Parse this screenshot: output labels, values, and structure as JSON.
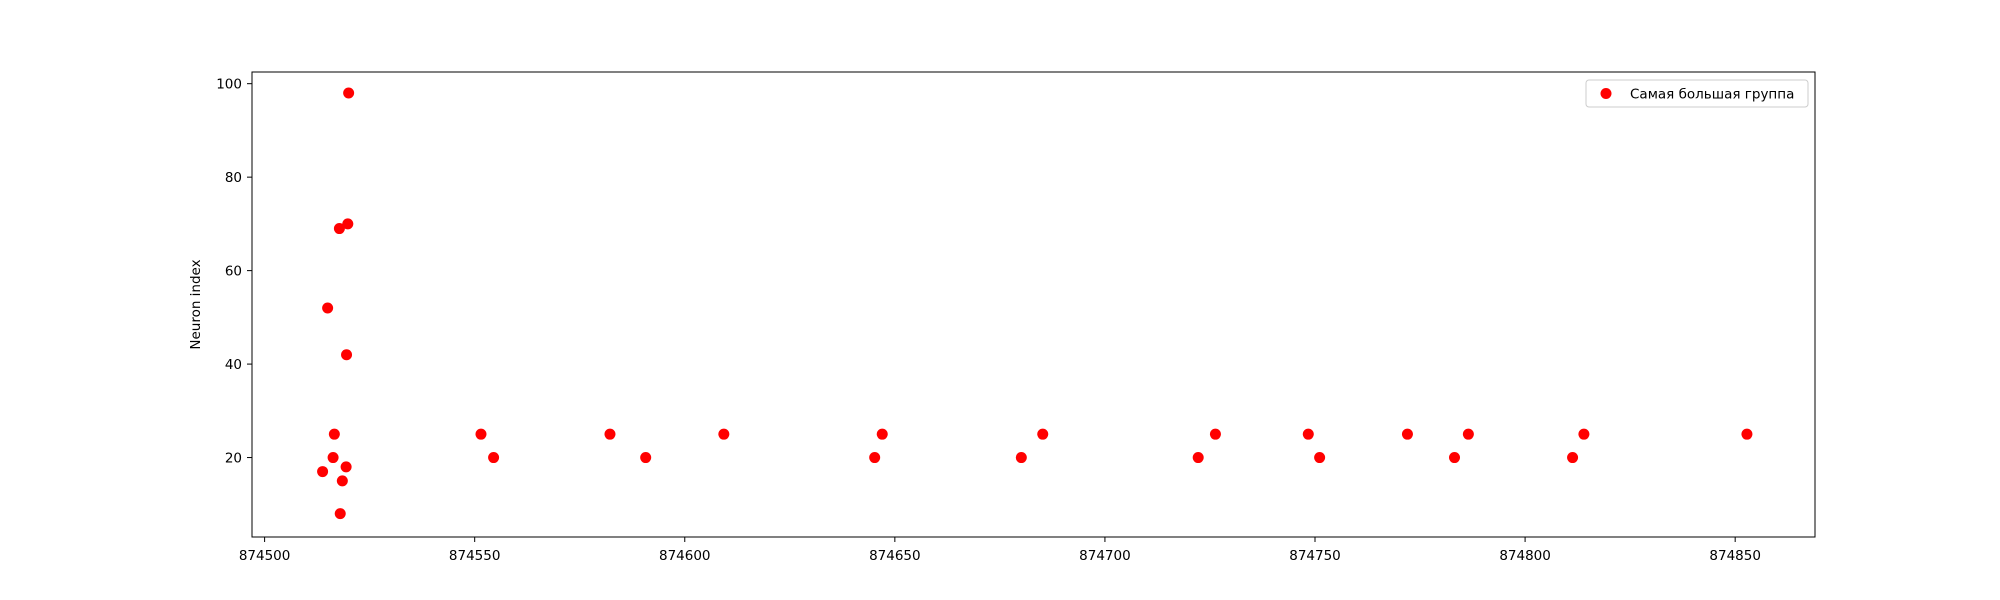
{
  "chart_data": {
    "type": "scatter",
    "title": "",
    "xlabel": "",
    "ylabel": "Neuron index",
    "xlim": [
      874497,
      874869
    ],
    "ylim": [
      3,
      102.5
    ],
    "xticks": [
      874500,
      874550,
      874600,
      874650,
      874700,
      874750,
      874800,
      874850
    ],
    "yticks": [
      20,
      40,
      60,
      80,
      100
    ],
    "grid": false,
    "legend_position": "top-right",
    "series": [
      {
        "name": "Самая большая группа",
        "color": "#ff0000",
        "points": [
          [
            874513.8,
            17
          ],
          [
            874515.0,
            52
          ],
          [
            874516.3,
            20
          ],
          [
            874516.6,
            25
          ],
          [
            874517.8,
            69
          ],
          [
            874518.0,
            8
          ],
          [
            874518.5,
            15
          ],
          [
            874519.4,
            18
          ],
          [
            874519.5,
            42
          ],
          [
            874519.8,
            70
          ],
          [
            874520.0,
            98
          ],
          [
            874551.5,
            25
          ],
          [
            874554.5,
            20
          ],
          [
            874582.2,
            25
          ],
          [
            874590.7,
            20
          ],
          [
            874609.3,
            25
          ],
          [
            874645.2,
            20
          ],
          [
            874647.0,
            25
          ],
          [
            874680.1,
            20
          ],
          [
            874685.2,
            25
          ],
          [
            874722.2,
            20
          ],
          [
            874726.3,
            25
          ],
          [
            874748.4,
            25
          ],
          [
            874751.1,
            20
          ],
          [
            874772.0,
            25
          ],
          [
            874783.2,
            20
          ],
          [
            874786.5,
            25
          ],
          [
            874811.3,
            20
          ],
          [
            874814.0,
            25
          ],
          [
            874852.8,
            25
          ]
        ]
      }
    ]
  }
}
